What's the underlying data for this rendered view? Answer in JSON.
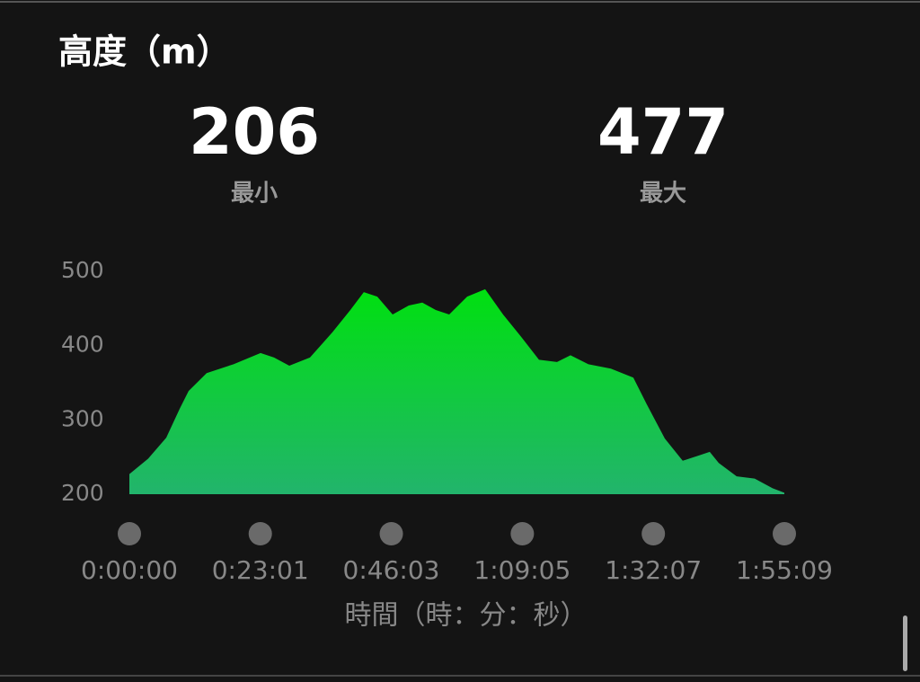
{
  "chart_data": {
    "type": "area",
    "title": "高度（m）",
    "stats": [
      {
        "value": 206,
        "label": "最小"
      },
      {
        "value": 477,
        "label": "最大"
      }
    ],
    "xlabel": "時間（時：分：秒）",
    "x": [
      0,
      199,
      389,
      531,
      625,
      815,
      1099,
      1384,
      1526,
      1687,
      1905,
      2142,
      2331,
      2473,
      2615,
      2777,
      2947,
      3090,
      3232,
      3374,
      3563,
      3753,
      3942,
      4132,
      4321,
      4511,
      4653,
      4842,
      5079,
      5316,
      5458,
      5648,
      5837,
      5980,
      6122,
      6217,
      6406,
      6596,
      6785,
      6909
    ],
    "values": [
      227,
      248,
      276,
      315,
      339,
      363,
      375,
      390,
      384,
      373,
      384,
      418,
      448,
      472,
      466,
      442,
      454,
      458,
      448,
      442,
      466,
      476,
      442,
      412,
      381,
      378,
      387,
      375,
      369,
      357,
      321,
      275,
      245,
      251,
      257,
      242,
      224,
      221,
      208,
      202
    ],
    "xlim": [
      0,
      6909
    ],
    "xticks": [
      {
        "value": 0,
        "label": "0:00:00"
      },
      {
        "value": 1381,
        "label": "0:23:01"
      },
      {
        "value": 2763,
        "label": "0:46:03"
      },
      {
        "value": 4145,
        "label": "1:09:05"
      },
      {
        "value": 5527,
        "label": "1:32:07"
      },
      {
        "value": 6909,
        "label": "1:55:09"
      }
    ],
    "ylim": [
      200,
      500
    ],
    "yticks": [
      200,
      300,
      400,
      500
    ],
    "color_top": "#00e010",
    "color_bottom": "#22b46c"
  }
}
